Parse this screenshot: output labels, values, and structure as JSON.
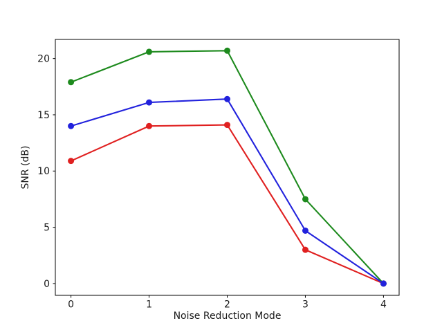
{
  "chart_data": {
    "type": "line",
    "title": "",
    "xlabel": "Noise Reduction Mode",
    "ylabel": "SNR (dB)",
    "x": [
      0,
      1,
      2,
      3,
      4
    ],
    "series": [
      {
        "name": "red",
        "color": "#e02020",
        "values": [
          10.9,
          14.0,
          14.1,
          3.0,
          0.0
        ]
      },
      {
        "name": "green",
        "color": "#1d8a1d",
        "values": [
          17.9,
          20.6,
          20.7,
          7.5,
          0.0
        ]
      },
      {
        "name": "blue",
        "color": "#2222dd",
        "values": [
          14.0,
          16.1,
          16.4,
          4.7,
          0.0
        ]
      }
    ],
    "xticks": [
      "0",
      "1",
      "2",
      "3",
      "4"
    ],
    "xtick_values": [
      0,
      1,
      2,
      3,
      4
    ],
    "yticks": [
      "0",
      "5",
      "10",
      "15",
      "20"
    ],
    "ytick_values": [
      0,
      5,
      10,
      15,
      20
    ],
    "xlim": [
      -0.2,
      4.2
    ],
    "ylim": [
      -1.05,
      21.7
    ],
    "grid": false,
    "legend": "none",
    "marker": "circle",
    "frame_color": "#000000",
    "background": "#ffffff"
  }
}
